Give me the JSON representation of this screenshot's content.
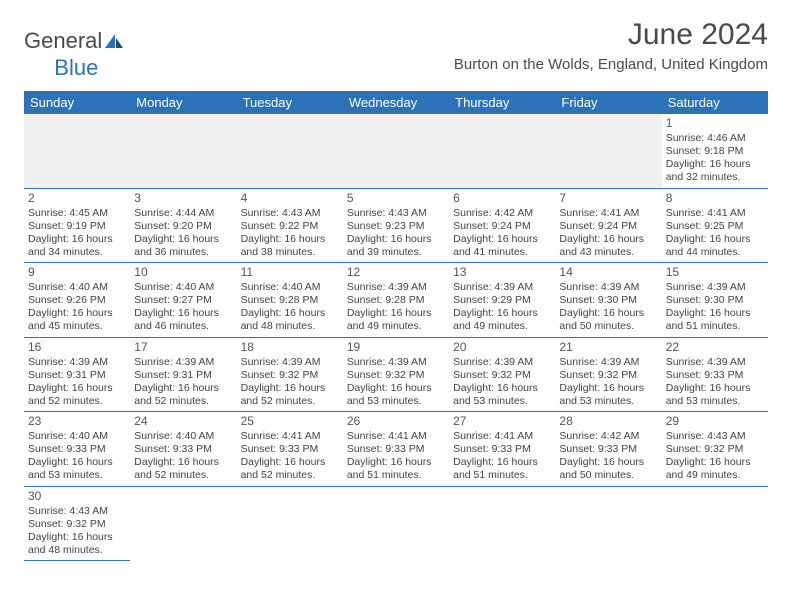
{
  "logo": {
    "text1": "General",
    "text2": "Blue"
  },
  "title": "June 2024",
  "location": "Burton on the Wolds, England, United Kingdom",
  "colors": {
    "header_bg": "#2d72b8",
    "header_text": "#ffffff",
    "cell_border": "#2d72b8",
    "blank_bg": "#f0f0f0",
    "text": "#444444"
  },
  "daynames": [
    "Sunday",
    "Monday",
    "Tuesday",
    "Wednesday",
    "Thursday",
    "Friday",
    "Saturday"
  ],
  "weeks": [
    [
      {
        "blank": true
      },
      {
        "blank": true
      },
      {
        "blank": true
      },
      {
        "blank": true
      },
      {
        "blank": true
      },
      {
        "blank": true
      },
      {
        "n": "1",
        "sr": "Sunrise: 4:46 AM",
        "ss": "Sunset: 9:18 PM",
        "d1": "Daylight: 16 hours",
        "d2": "and 32 minutes."
      }
    ],
    [
      {
        "n": "2",
        "sr": "Sunrise: 4:45 AM",
        "ss": "Sunset: 9:19 PM",
        "d1": "Daylight: 16 hours",
        "d2": "and 34 minutes."
      },
      {
        "n": "3",
        "sr": "Sunrise: 4:44 AM",
        "ss": "Sunset: 9:20 PM",
        "d1": "Daylight: 16 hours",
        "d2": "and 36 minutes."
      },
      {
        "n": "4",
        "sr": "Sunrise: 4:43 AM",
        "ss": "Sunset: 9:22 PM",
        "d1": "Daylight: 16 hours",
        "d2": "and 38 minutes."
      },
      {
        "n": "5",
        "sr": "Sunrise: 4:43 AM",
        "ss": "Sunset: 9:23 PM",
        "d1": "Daylight: 16 hours",
        "d2": "and 39 minutes."
      },
      {
        "n": "6",
        "sr": "Sunrise: 4:42 AM",
        "ss": "Sunset: 9:24 PM",
        "d1": "Daylight: 16 hours",
        "d2": "and 41 minutes."
      },
      {
        "n": "7",
        "sr": "Sunrise: 4:41 AM",
        "ss": "Sunset: 9:24 PM",
        "d1": "Daylight: 16 hours",
        "d2": "and 43 minutes."
      },
      {
        "n": "8",
        "sr": "Sunrise: 4:41 AM",
        "ss": "Sunset: 9:25 PM",
        "d1": "Daylight: 16 hours",
        "d2": "and 44 minutes."
      }
    ],
    [
      {
        "n": "9",
        "sr": "Sunrise: 4:40 AM",
        "ss": "Sunset: 9:26 PM",
        "d1": "Daylight: 16 hours",
        "d2": "and 45 minutes."
      },
      {
        "n": "10",
        "sr": "Sunrise: 4:40 AM",
        "ss": "Sunset: 9:27 PM",
        "d1": "Daylight: 16 hours",
        "d2": "and 46 minutes."
      },
      {
        "n": "11",
        "sr": "Sunrise: 4:40 AM",
        "ss": "Sunset: 9:28 PM",
        "d1": "Daylight: 16 hours",
        "d2": "and 48 minutes."
      },
      {
        "n": "12",
        "sr": "Sunrise: 4:39 AM",
        "ss": "Sunset: 9:28 PM",
        "d1": "Daylight: 16 hours",
        "d2": "and 49 minutes."
      },
      {
        "n": "13",
        "sr": "Sunrise: 4:39 AM",
        "ss": "Sunset: 9:29 PM",
        "d1": "Daylight: 16 hours",
        "d2": "and 49 minutes."
      },
      {
        "n": "14",
        "sr": "Sunrise: 4:39 AM",
        "ss": "Sunset: 9:30 PM",
        "d1": "Daylight: 16 hours",
        "d2": "and 50 minutes."
      },
      {
        "n": "15",
        "sr": "Sunrise: 4:39 AM",
        "ss": "Sunset: 9:30 PM",
        "d1": "Daylight: 16 hours",
        "d2": "and 51 minutes."
      }
    ],
    [
      {
        "n": "16",
        "sr": "Sunrise: 4:39 AM",
        "ss": "Sunset: 9:31 PM",
        "d1": "Daylight: 16 hours",
        "d2": "and 52 minutes."
      },
      {
        "n": "17",
        "sr": "Sunrise: 4:39 AM",
        "ss": "Sunset: 9:31 PM",
        "d1": "Daylight: 16 hours",
        "d2": "and 52 minutes."
      },
      {
        "n": "18",
        "sr": "Sunrise: 4:39 AM",
        "ss": "Sunset: 9:32 PM",
        "d1": "Daylight: 16 hours",
        "d2": "and 52 minutes."
      },
      {
        "n": "19",
        "sr": "Sunrise: 4:39 AM",
        "ss": "Sunset: 9:32 PM",
        "d1": "Daylight: 16 hours",
        "d2": "and 53 minutes."
      },
      {
        "n": "20",
        "sr": "Sunrise: 4:39 AM",
        "ss": "Sunset: 9:32 PM",
        "d1": "Daylight: 16 hours",
        "d2": "and 53 minutes."
      },
      {
        "n": "21",
        "sr": "Sunrise: 4:39 AM",
        "ss": "Sunset: 9:32 PM",
        "d1": "Daylight: 16 hours",
        "d2": "and 53 minutes."
      },
      {
        "n": "22",
        "sr": "Sunrise: 4:39 AM",
        "ss": "Sunset: 9:33 PM",
        "d1": "Daylight: 16 hours",
        "d2": "and 53 minutes."
      }
    ],
    [
      {
        "n": "23",
        "sr": "Sunrise: 4:40 AM",
        "ss": "Sunset: 9:33 PM",
        "d1": "Daylight: 16 hours",
        "d2": "and 53 minutes."
      },
      {
        "n": "24",
        "sr": "Sunrise: 4:40 AM",
        "ss": "Sunset: 9:33 PM",
        "d1": "Daylight: 16 hours",
        "d2": "and 52 minutes."
      },
      {
        "n": "25",
        "sr": "Sunrise: 4:41 AM",
        "ss": "Sunset: 9:33 PM",
        "d1": "Daylight: 16 hours",
        "d2": "and 52 minutes."
      },
      {
        "n": "26",
        "sr": "Sunrise: 4:41 AM",
        "ss": "Sunset: 9:33 PM",
        "d1": "Daylight: 16 hours",
        "d2": "and 51 minutes."
      },
      {
        "n": "27",
        "sr": "Sunrise: 4:41 AM",
        "ss": "Sunset: 9:33 PM",
        "d1": "Daylight: 16 hours",
        "d2": "and 51 minutes."
      },
      {
        "n": "28",
        "sr": "Sunrise: 4:42 AM",
        "ss": "Sunset: 9:33 PM",
        "d1": "Daylight: 16 hours",
        "d2": "and 50 minutes."
      },
      {
        "n": "29",
        "sr": "Sunrise: 4:43 AM",
        "ss": "Sunset: 9:32 PM",
        "d1": "Daylight: 16 hours",
        "d2": "and 49 minutes."
      }
    ],
    [
      {
        "n": "30",
        "sr": "Sunrise: 4:43 AM",
        "ss": "Sunset: 9:32 PM",
        "d1": "Daylight: 16 hours",
        "d2": "and 48 minutes."
      },
      {
        "empty": true
      },
      {
        "empty": true
      },
      {
        "empty": true
      },
      {
        "empty": true
      },
      {
        "empty": true
      },
      {
        "empty": true
      }
    ]
  ]
}
